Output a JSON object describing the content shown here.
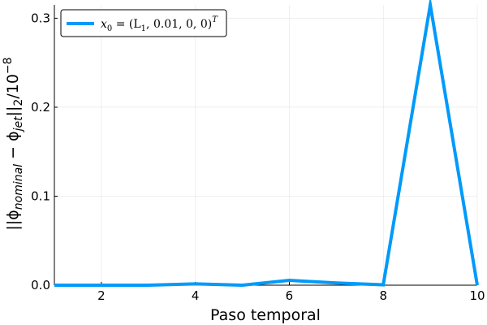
{
  "chart_data": {
    "type": "line",
    "xlabel": "Paso temporal",
    "ylabel": "||ϕ_nominal − ϕ_jet||₂/10⁻⁸",
    "ylabel_parts": {
      "pre": "||ϕ",
      "sub1": "nominal",
      "mid": " − ϕ",
      "sub2": "jet",
      "post": "||",
      "sub3": "2",
      "div": "/10",
      "sup": "−8"
    },
    "xlim": [
      1,
      10
    ],
    "ylim": [
      0,
      0.315
    ],
    "x_ticks": [
      2,
      4,
      6,
      8,
      10
    ],
    "x_tick_labels": [
      "2",
      "4",
      "6",
      "8",
      "10"
    ],
    "y_ticks": [
      0.0,
      0.1,
      0.2,
      0.3
    ],
    "y_tick_labels": [
      "0.0",
      "0.1",
      "0.2",
      "0.3"
    ],
    "grid": true,
    "legend_position": "top-left",
    "series": [
      {
        "name": "x₀ = (L₁, 0.01, 0, 0)ᵀ",
        "color": "#009AFA",
        "x": [
          1,
          2,
          3,
          4,
          5,
          6,
          7,
          8,
          9,
          10
        ],
        "y": [
          0.0,
          0.0,
          0.0,
          0.0015,
          0.0,
          0.0055,
          0.0025,
          0.0005,
          0.315,
          0.0
        ]
      }
    ],
    "legend_label_parts": {
      "a": "x",
      "a_sub": "0",
      "b": " = (L",
      "b_sub": "1",
      "c": ", 0.01, 0, 0)",
      "c_sup": "T"
    }
  }
}
